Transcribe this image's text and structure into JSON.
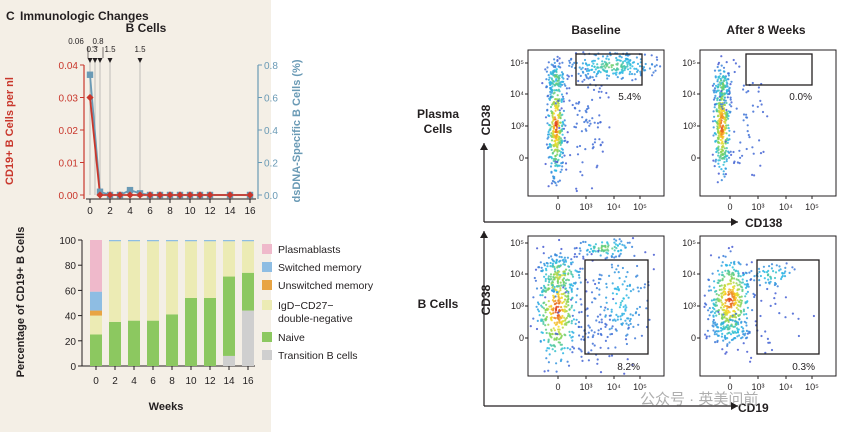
{
  "panel": {
    "letter": "C",
    "title": "Immunologic Changes"
  },
  "colors": {
    "red": "#c9372c",
    "teal": "#6a9ab5",
    "naive": "#8cc860",
    "dn": "#ecebb4",
    "unsw": "#e8a443",
    "sw": "#8ebde3",
    "plasma": "#efb9cb",
    "trans": "#cfcfcf",
    "panel_bg": "#f4efe6"
  },
  "rituximab_marks": [
    "0.06",
    "0.3",
    "0.8",
    "1.5",
    "1.5"
  ],
  "chart_data": [
    {
      "type": "line",
      "title": "B Cells",
      "x": [
        0,
        1,
        2,
        3,
        4,
        5,
        6,
        7,
        8,
        9,
        10,
        11,
        12,
        14,
        16
      ],
      "xlim": [
        0,
        16
      ],
      "xticks": [
        0,
        2,
        4,
        6,
        8,
        10,
        12,
        14,
        16
      ],
      "ylabel": "CD19+ B Cells per nl",
      "ylim": [
        0,
        0.04
      ],
      "yticks": [
        0,
        0.01,
        0.02,
        0.03,
        0.04
      ],
      "ytick_labels": [
        "0.00",
        "0.01",
        "0.02",
        "0.03",
        "0.04"
      ],
      "y2label": "dsDNA-Specific B Cells (%)",
      "y2lim": [
        0,
        0.8
      ],
      "y2ticks": [
        0,
        0.2,
        0.4,
        0.6,
        0.8
      ],
      "y2tick_labels": [
        "0.0",
        "0.2",
        "0.4",
        "0.6",
        "0.8"
      ],
      "series": [
        {
          "axis": "left",
          "values": [
            0.03,
            0.0,
            0.0,
            0.0,
            0.0,
            0.0,
            0.0,
            0.0,
            0.0,
            0.0,
            0.0,
            0.0,
            0.0,
            0.0,
            0.0
          ]
        },
        {
          "axis": "right",
          "values": [
            0.74,
            0.02,
            0.0,
            0.0,
            0.03,
            0.01,
            0.0,
            0.0,
            0.0,
            0.0,
            0.0,
            0.0,
            0.0,
            0.0,
            0.0
          ]
        }
      ]
    },
    {
      "type": "bar",
      "stacked": true,
      "categories": [
        "0",
        "2",
        "4",
        "6",
        "8",
        "10",
        "12",
        "14",
        "16"
      ],
      "xlabel": "Weeks",
      "ylabel": "Percentage of CD19+ B Cells",
      "ylim": [
        0,
        100
      ],
      "yticks": [
        0,
        20,
        40,
        60,
        80,
        100
      ],
      "series": [
        {
          "name": "Transition B cells",
          "values": [
            0,
            0,
            0,
            0,
            0,
            0,
            0,
            8,
            44
          ]
        },
        {
          "name": "Naive",
          "values": [
            25,
            35,
            36,
            36,
            41,
            54,
            54,
            63,
            30
          ]
        },
        {
          "name": "IgD−CD27− double-negative",
          "values": [
            15,
            64,
            63,
            63,
            58,
            45,
            45,
            28,
            25
          ]
        },
        {
          "name": "Unswitched memory",
          "values": [
            4,
            0,
            0,
            0,
            0,
            0,
            0,
            0,
            0
          ]
        },
        {
          "name": "Switched memory",
          "values": [
            15,
            1,
            1,
            1,
            1,
            1,
            1,
            1,
            1
          ]
        },
        {
          "name": "Plasmablasts",
          "values": [
            41,
            0,
            0,
            0,
            0,
            0,
            0,
            0,
            0
          ]
        }
      ],
      "legend": [
        {
          "name": "Plasmablasts",
          "lines": [
            "Plasmablasts"
          ]
        },
        {
          "name": "Switched memory",
          "lines": [
            "Switched memory"
          ]
        },
        {
          "name": "Unswitched memory",
          "lines": [
            "Unswitched memory"
          ]
        },
        {
          "name": "double-negative",
          "lines": [
            "IgD−CD27−",
            "double-negative"
          ]
        },
        {
          "name": "Naive",
          "lines": [
            "Naive"
          ]
        },
        {
          "name": "Transition B cells",
          "lines": [
            "Transition B cells"
          ]
        }
      ]
    }
  ],
  "flow": {
    "col_baseline": "Baseline",
    "col_after": "After 8 Weeks",
    "row_plasma": [
      "Plasma",
      "Cells"
    ],
    "row_bcells": "B Cells",
    "y_label": "CD38",
    "x_label_top": "CD138",
    "x_label_bottom": "CD19",
    "log_ticks": [
      "0",
      "10³",
      "10⁴",
      "10⁵"
    ],
    "gate_values": {
      "plasma_baseline": "5.4%",
      "plasma_after": "0.0%",
      "bcell_baseline": "8.2%",
      "bcell_after": "0.3%"
    }
  },
  "watermark": "公众号 · 英美问前"
}
